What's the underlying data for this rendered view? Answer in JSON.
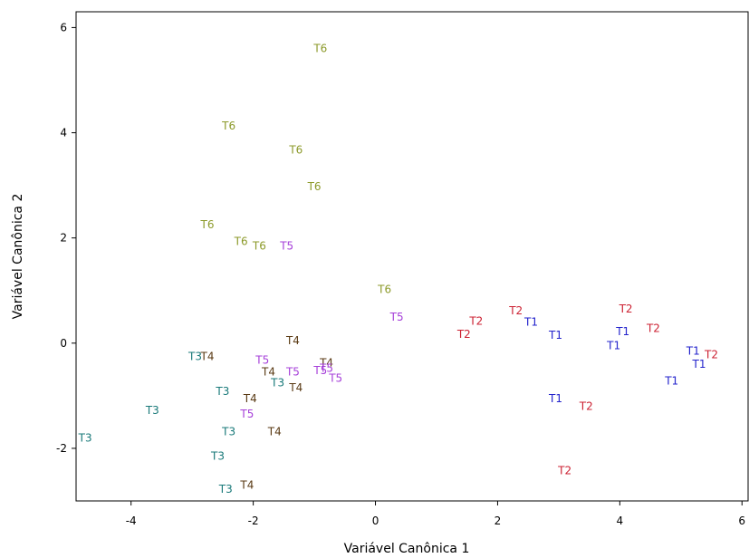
{
  "chart_data": {
    "type": "scatter",
    "xlabel": "Variável Canônica 1",
    "ylabel": "Variável Canônica 2",
    "xlim": [
      -4.9,
      6.1
    ],
    "ylim": [
      -3.0,
      6.3
    ],
    "xticks": [
      "-4",
      "-2",
      "0",
      "2",
      "4",
      "6"
    ],
    "xtick_values": [
      -4,
      -2,
      0,
      2,
      4,
      6
    ],
    "yticks": [
      "-2",
      "0",
      "2",
      "4",
      "6"
    ],
    "ytick_values": [
      -2,
      0,
      2,
      4,
      6
    ],
    "grid": false,
    "legend": "none",
    "series": [
      {
        "label": "T1",
        "color": "#2323cc",
        "points": [
          [
            2.55,
            0.4
          ],
          [
            2.95,
            0.15
          ],
          [
            3.9,
            -0.05
          ],
          [
            4.05,
            0.22
          ],
          [
            5.2,
            -0.15
          ],
          [
            5.3,
            -0.4
          ],
          [
            4.85,
            -0.72
          ],
          [
            2.95,
            -1.05
          ]
        ]
      },
      {
        "label": "T2",
        "color": "#cc2233",
        "points": [
          [
            2.3,
            0.62
          ],
          [
            1.65,
            0.42
          ],
          [
            1.45,
            0.17
          ],
          [
            4.1,
            0.65
          ],
          [
            4.55,
            0.28
          ],
          [
            5.5,
            -0.22
          ],
          [
            3.45,
            -1.2
          ],
          [
            3.1,
            -2.42
          ]
        ]
      },
      {
        "label": "T3",
        "color": "#1a7a7a",
        "points": [
          [
            -2.95,
            -0.25
          ],
          [
            -2.5,
            -0.92
          ],
          [
            -1.6,
            -0.75
          ],
          [
            -3.65,
            -1.28
          ],
          [
            -2.4,
            -1.68
          ],
          [
            -4.75,
            -1.8
          ],
          [
            -2.58,
            -2.15
          ],
          [
            -2.45,
            -2.78
          ]
        ]
      },
      {
        "label": "T4",
        "color": "#5a3a14",
        "points": [
          [
            -2.75,
            -0.25
          ],
          [
            -1.35,
            0.05
          ],
          [
            -0.8,
            -0.37
          ],
          [
            -1.75,
            -0.55
          ],
          [
            -1.3,
            -0.85
          ],
          [
            -2.05,
            -1.05
          ],
          [
            -1.65,
            -1.68
          ],
          [
            -2.1,
            -2.7
          ]
        ]
      },
      {
        "label": "T5",
        "color": "#a640d9",
        "points": [
          [
            -1.45,
            1.85
          ],
          [
            0.35,
            0.5
          ],
          [
            -1.85,
            -0.32
          ],
          [
            -1.35,
            -0.55
          ],
          [
            -0.9,
            -0.52
          ],
          [
            -0.8,
            -0.48
          ],
          [
            -0.65,
            -0.67
          ],
          [
            -2.1,
            -1.35
          ]
        ]
      },
      {
        "label": "T6",
        "color": "#8c9a2a",
        "points": [
          [
            -0.9,
            5.6
          ],
          [
            -2.4,
            4.13
          ],
          [
            -1.3,
            3.67
          ],
          [
            -1.0,
            2.98
          ],
          [
            -2.75,
            2.25
          ],
          [
            -2.2,
            1.93
          ],
          [
            -1.9,
            1.85
          ],
          [
            0.15,
            1.02
          ]
        ]
      }
    ]
  }
}
